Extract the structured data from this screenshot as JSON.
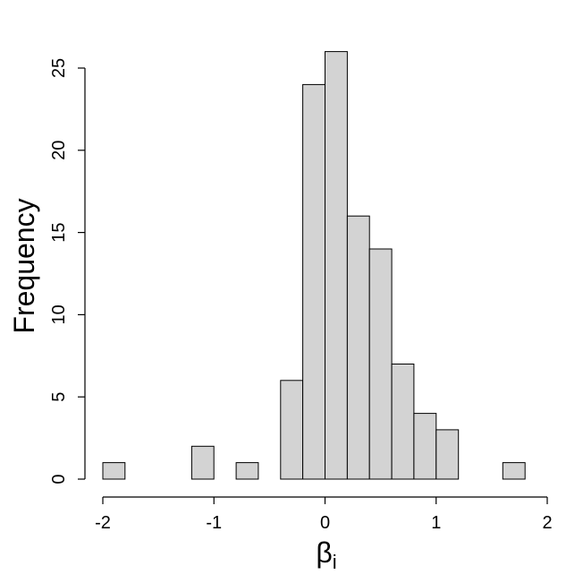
{
  "chart_data": {
    "type": "bar",
    "title": "",
    "xlabel": "β",
    "xlabel_subscript": "i",
    "ylabel": "Frequency",
    "bins": [
      {
        "from": -2.0,
        "to": -1.8,
        "count": 1
      },
      {
        "from": -1.8,
        "to": -1.6,
        "count": 0
      },
      {
        "from": -1.6,
        "to": -1.4,
        "count": 0
      },
      {
        "from": -1.4,
        "to": -1.2,
        "count": 0
      },
      {
        "from": -1.2,
        "to": -1.0,
        "count": 2
      },
      {
        "from": -1.0,
        "to": -0.8,
        "count": 0
      },
      {
        "from": -0.8,
        "to": -0.6,
        "count": 1
      },
      {
        "from": -0.6,
        "to": -0.4,
        "count": 0
      },
      {
        "from": -0.4,
        "to": -0.2,
        "count": 6
      },
      {
        "from": -0.2,
        "to": 0.0,
        "count": 24
      },
      {
        "from": 0.0,
        "to": 0.2,
        "count": 26
      },
      {
        "from": 0.2,
        "to": 0.4,
        "count": 16
      },
      {
        "from": 0.4,
        "to": 0.6,
        "count": 14
      },
      {
        "from": 0.6,
        "to": 0.8,
        "count": 7
      },
      {
        "from": 0.8,
        "to": 1.0,
        "count": 4
      },
      {
        "from": 1.0,
        "to": 1.2,
        "count": 3
      },
      {
        "from": 1.2,
        "to": 1.4,
        "count": 0
      },
      {
        "from": 1.4,
        "to": 1.6,
        "count": 0
      },
      {
        "from": 1.6,
        "to": 1.8,
        "count": 1
      }
    ],
    "xlim": [
      -2,
      2
    ],
    "ylim": [
      0,
      26
    ],
    "xticks": [
      -2,
      -1,
      0,
      1,
      2
    ],
    "xtick_labels": [
      "-2",
      "-1",
      "0",
      "1",
      "2"
    ],
    "yticks": [
      0,
      5,
      10,
      15,
      20,
      25
    ],
    "ytick_labels": [
      "0",
      "5",
      "10",
      "15",
      "20",
      "25"
    ],
    "grid": false,
    "bar_color": "#d3d3d3",
    "edge_color": "#000000"
  }
}
